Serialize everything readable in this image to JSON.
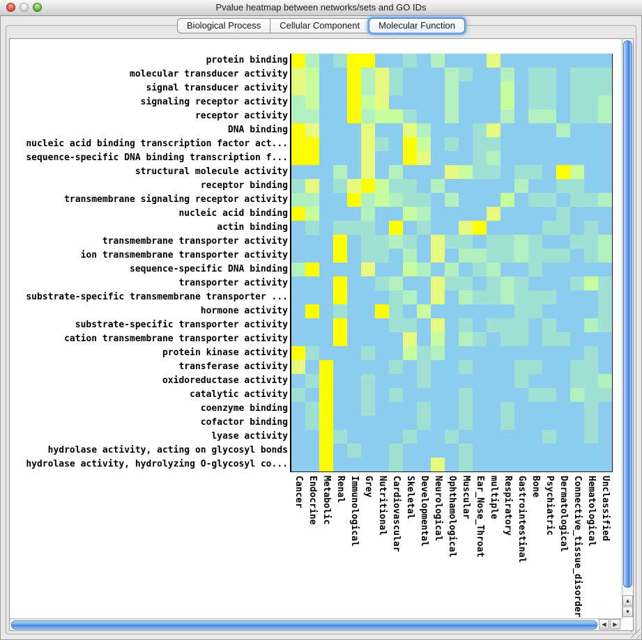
{
  "window": {
    "title": "Pvalue heatmap between networks/sets and GO IDs"
  },
  "tabs": [
    {
      "label": "Biological Process",
      "selected": false
    },
    {
      "label": "Cellular Component",
      "selected": false
    },
    {
      "label": "Molecular Function",
      "selected": true
    }
  ],
  "scrollbar_icons": {
    "up": "▲",
    "down": "▼",
    "left": "◀",
    "right": "▶"
  },
  "chart_data": {
    "type": "heatmap",
    "title": "Pvalue heatmap between networks/sets and GO IDs",
    "legend": "cell color encodes p-value significance: Y=most significant (yellow) through B=not significant (light blue)",
    "rows": [
      "protein binding",
      "molecular transducer activity",
      "signal transducer activity",
      "signaling receptor activity",
      "receptor activity",
      "DNA binding",
      "nucleic acid binding transcription factor act...",
      "sequence-specific DNA binding transcription f...",
      "structural molecule activity",
      "receptor binding",
      "transmembrane signaling receptor activity",
      "nucleic acid binding",
      "actin binding",
      "transmembrane transporter activity",
      "ion transmembrane transporter activity",
      "sequence-specific DNA binding",
      "transporter activity",
      "substrate-specific transmembrane transporter ...",
      "hormone activity",
      "substrate-specific transporter activity",
      "cation transmembrane transporter activity",
      "protein kinase activity",
      "transferase activity",
      "oxidoreductase activity",
      "catalytic activity",
      "coenzyme binding",
      "cofactor binding",
      "lyase activity",
      "hydrolase activity, acting on glycosyl bonds",
      "hydrolase activity, hydrolyzing O-glycosyl co..."
    ],
    "categories": [
      "Cancer",
      "Endocrine",
      "Metabolic",
      "Renal",
      "Immunological",
      "Grey",
      "Nutritional",
      "Cardiovascular",
      "Skeletal",
      "Developmental",
      "Neurological",
      "Ophthamological",
      "Muscular",
      "Ear_Nose_Throat",
      "multiple",
      "Respiratory",
      "Gastrointestinal",
      "Bone",
      "Psychiatric",
      "Dermatological",
      "Connective_tissue_disorder",
      "Hematological",
      "Unclassified"
    ],
    "palette": {
      "Y": "#FFFF00",
      "y": "#E6FA7F",
      "g": "#C8FD9D",
      "G": "#B2F1BF",
      "T": "#A1E1D3",
      "B": "#8CCCEE"
    },
    "grid": [
      "YGBTYYBBTBGBBByBBBBBBBB",
      "ygBBYGyTBBBGTBBGBTTBTTT",
      "ygBBYGyTBBBGBBBgBTTBTTT",
      "GgBBYgyBBBBGBBBgBTTBTTG",
      "GGBBYGggTBBGBBBGBGGBTTG",
      "YyBBByBByGBBBTyBBBBGBBB",
      "YYBBByTBYgBTBTTBBBBBBBB",
      "YYBBByBBYyBBBTGBBBBBBBB",
      "BBBGByBGBBBygTTBTTBYgBB",
      "TyBTyYgTTBGBBBBBGBBTTBB",
      "GGBBYGgGTTBGBBBgBTTBTTG",
      "YgBBBGBBgGBBBByBBBBTBBB",
      "BTBTTTBYBTBByYBBBBTTBTB",
      "BBBYBTTGTByTTBTTGTBBTTG",
      "BBBYBTTBGByBGGTTGTTTBTG",
      "GYBBByBBgGBGBTGBBTBBBBB",
      "BBBYBBTGBByTTBTGTBBBTgT",
      "BBBYBBBTGByBGTTGTTTBBBT",
      "BYBTBBYTBgBBBBBBTTBBBBT",
      "BBBYBBBTTByBTBTTTBTBBGT",
      "BBBYBBBByBgBGTBTTBTTBBB",
      "YTBBBTBBgTGBBBBBBBBBBTB",
      "yBYBBBBTBTBBTBBBTTBBTTB",
      "BTYBBTBBBTBBBBBBTBBBTTG",
      "TBYBBTBTBBBBTBBBBTTBGTT",
      "BTYBBTBBBTBBTBBTBBBBBTB",
      "BTYBBBBBBTBBTBBTBBBBBTB",
      "BBYTBBBBTBBTBBBBBBTBBTB",
      "BBYBTBBTBBBBTBBBBBBBBBB",
      "BBYBBBBTBByBTBBBBBBBBBB"
    ]
  }
}
